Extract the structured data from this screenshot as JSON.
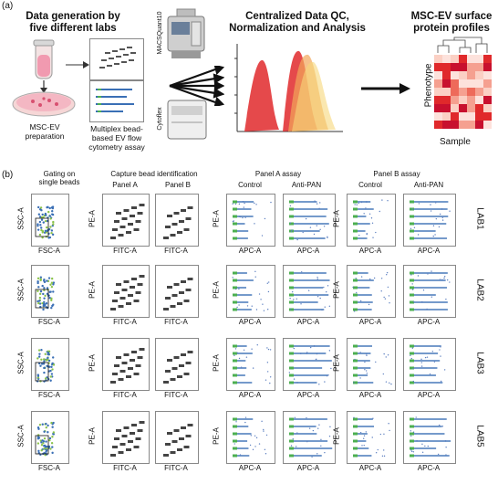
{
  "panel_a": {
    "letter": "(a)",
    "step1_heading_line1": "Data generation by",
    "step1_heading_line2": "five different labs",
    "step1_caption_line1": "MSC-EV",
    "step1_caption_line2": "preparation",
    "assay_caption_line1": "Multiplex bead-",
    "assay_caption_line2": "based EV flow",
    "assay_caption_line3": "cytometry assay",
    "instrument1_label": "MACSQuant10",
    "instrument2_label": "Cytoflex",
    "step2_heading_line1": "Centralized Data QC,",
    "step2_heading_line2": "Normalization and Analysis",
    "step3_heading_line1": "MSC-EV surface",
    "step3_heading_line2": "protein profiles",
    "heatmap_ylabel": "Phenotype",
    "heatmap_xlabel": "Sample",
    "colors": {
      "red": "#e0292b",
      "orange": "#f2a65a",
      "yellow": "#f6d77a",
      "heat_dark": "#c8102e",
      "heat_light": "#fde2dc"
    }
  },
  "panel_b": {
    "letter": "(b)",
    "col_gating_line1": "Gating on",
    "col_gating_line2": "single beads",
    "col_capture": "Capture bead identification",
    "col_panelA_sub": "Panel A",
    "col_panelB_sub": "Panel B",
    "col_assayA": "Panel A assay",
    "col_assayB": "Panel B assay",
    "sub_control": "Control",
    "sub_antipan": "Anti-PAN",
    "ylabel_ssc": "SSC-A",
    "xlabel_fsc": "FSC-A",
    "ylabel_pe": "PE-A",
    "xlabel_fitc": "FITC-A",
    "xlabel_apc": "APC-A",
    "labs": [
      "LAB1",
      "LAB2",
      "LAB3",
      "LAB5"
    ]
  }
}
